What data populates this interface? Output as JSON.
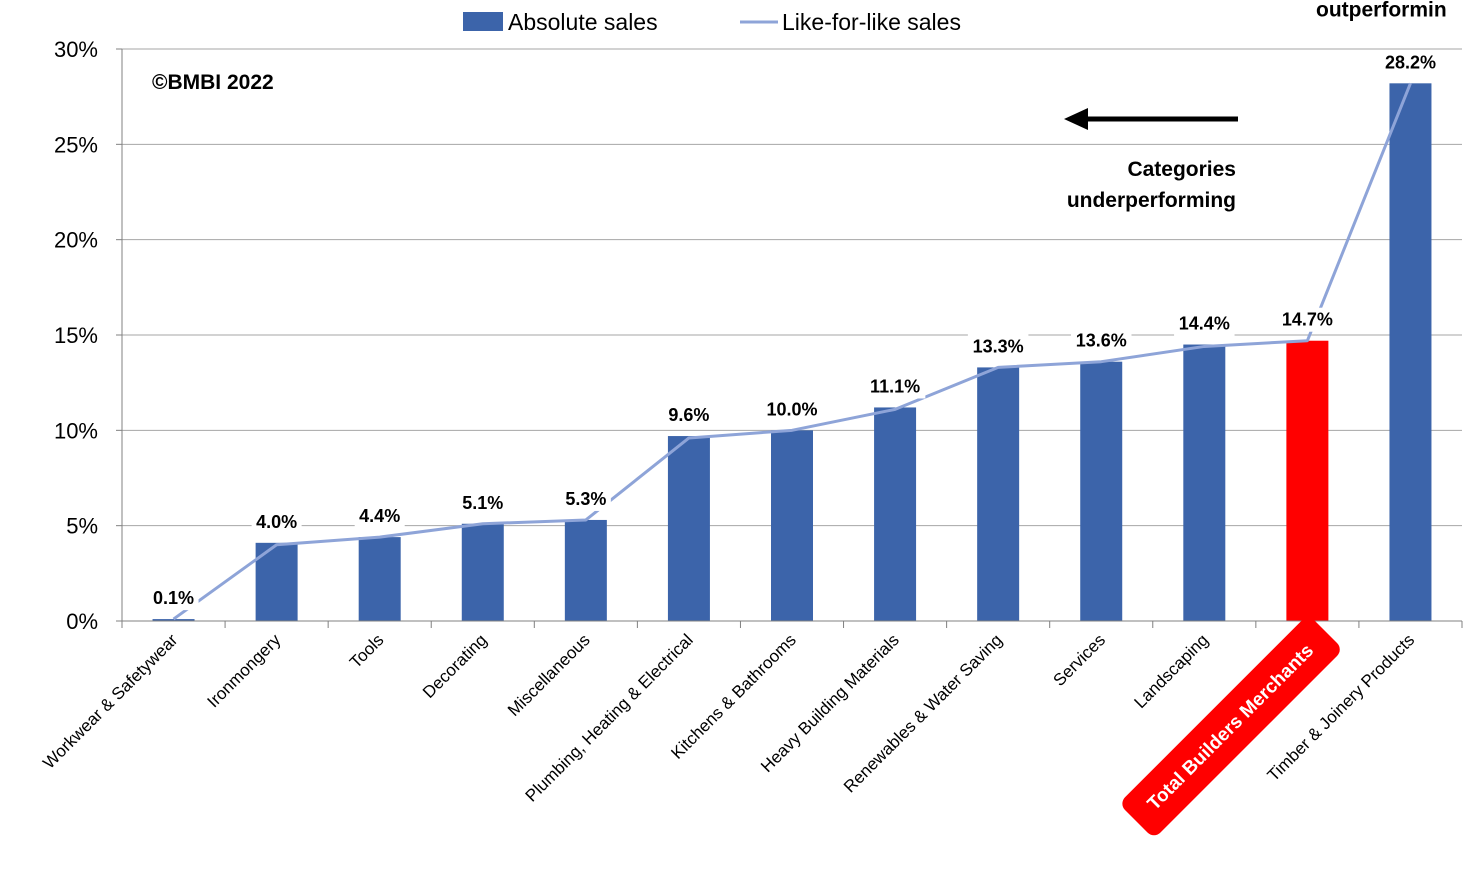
{
  "chart_data": {
    "type": "bar",
    "title": "",
    "xlabel": "",
    "ylabel": "",
    "ylim": [
      0,
      30
    ],
    "yticks": [
      "0%",
      "5%",
      "10%",
      "15%",
      "20%",
      "25%",
      "30%"
    ],
    "grid": true,
    "legend_position": "top",
    "categories": [
      "Workwear & Safetywear",
      "Ironmongery",
      "Tools",
      "Decorating",
      "Miscellaneous",
      "Plumbing, Heating & Electrical",
      "Kitchens & Bathrooms",
      "Heavy Building Materials",
      "Renewables & Water Saving",
      "Services",
      "Landscaping",
      "Total Builders Merchants",
      "Timber & Joinery Products"
    ],
    "series": [
      {
        "name": "Absolute sales",
        "type": "bar",
        "color": "#3c64aa",
        "highlight": {
          "index": 11,
          "color": "#ff0000"
        },
        "values": [
          0.1,
          4.1,
          4.4,
          5.1,
          5.3,
          9.7,
          10.0,
          11.2,
          13.3,
          13.6,
          14.5,
          14.7,
          28.2
        ]
      },
      {
        "name": "Like-for-like sales",
        "type": "line",
        "color": "#8ea4d8",
        "values": [
          0.1,
          4.0,
          4.4,
          5.1,
          5.3,
          9.6,
          10.0,
          11.1,
          13.3,
          13.6,
          14.4,
          14.7,
          28.2
        ]
      }
    ],
    "data_labels": [
      "0.1%",
      "4.0%",
      "4.4%",
      "5.1%",
      "5.3%",
      "9.6%",
      "10.0%",
      "11.1%",
      "13.3%",
      "13.6%",
      "14.4%",
      "14.7%",
      "28.2%"
    ],
    "annotations": {
      "copyright": "©BMBI 2022",
      "underperforming_line1": "Categories",
      "underperforming_line2": "underperforming",
      "outperforming_partial": "outperformin"
    },
    "colors": {
      "grid": "#a6a6a6",
      "axis": "#808080",
      "highlight_badge": "#ff0000",
      "highlight_badge_text": "#ffffff"
    }
  }
}
